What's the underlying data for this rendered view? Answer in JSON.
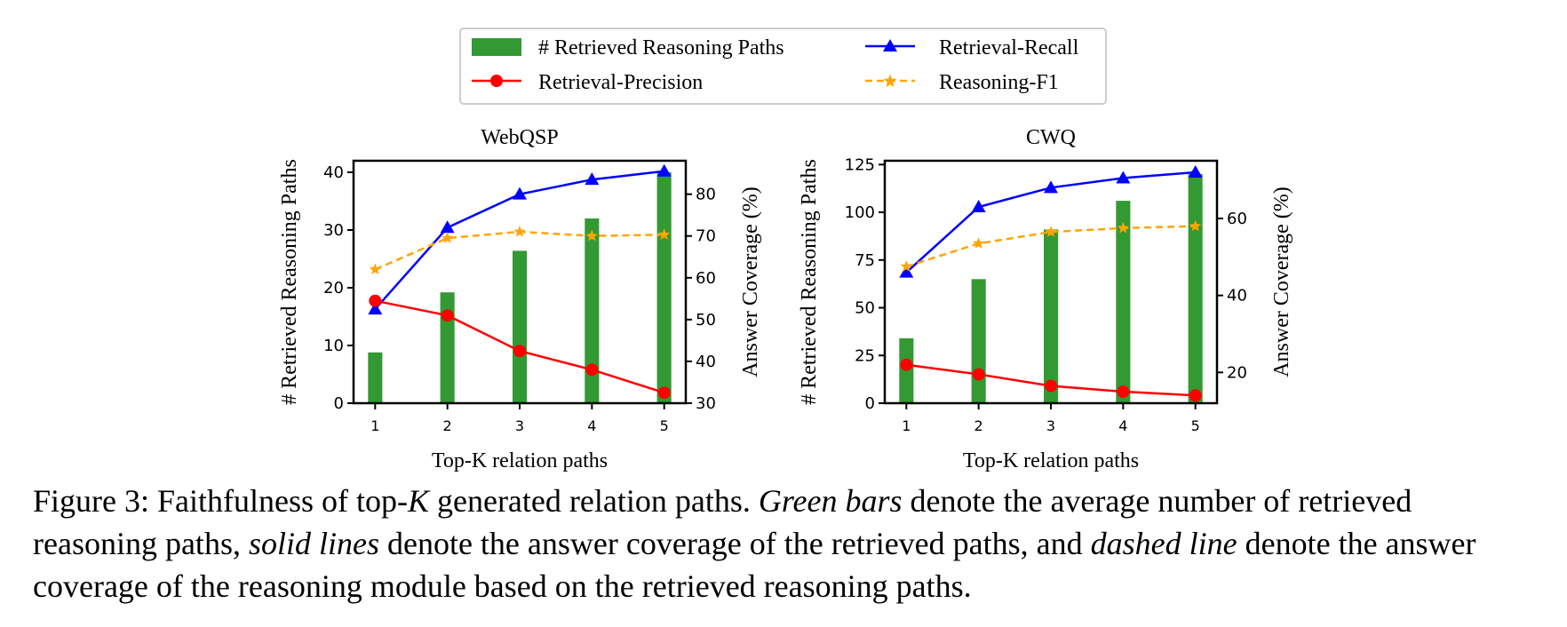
{
  "legend": {
    "items": [
      {
        "label": "# Retrieved Reasoning Paths",
        "kind": "bar",
        "color": "#339933"
      },
      {
        "label": "Retrieval-Recall",
        "kind": "line-triangle",
        "color": "#0000ff"
      },
      {
        "label": "Retrieval-Precision",
        "kind": "line-circle",
        "color": "#ff0000"
      },
      {
        "label": "Reasoning-F1",
        "kind": "dashed-star",
        "color": "#ffa500"
      }
    ]
  },
  "chart_data": [
    {
      "type": "bar",
      "title": "WebQSP",
      "xlabel": "Top-K relation paths",
      "ylabel": "# Retrieved Reasoning Paths",
      "y2label": "Answer Coverage (%)",
      "categories": [
        "1",
        "2",
        "3",
        "4",
        "5"
      ],
      "ylim": [
        0,
        42
      ],
      "y_ticks": [
        0,
        10,
        20,
        30,
        40
      ],
      "y2lim": [
        30,
        88
      ],
      "y2_ticks": [
        30,
        40,
        50,
        60,
        70,
        80
      ],
      "bars": {
        "name": "# Retrieved Reasoning Paths",
        "values": [
          8.8,
          19.2,
          26.4,
          32.0,
          40.0
        ]
      },
      "lines": [
        {
          "name": "Retrieval-Recall",
          "axis": "right",
          "values": [
            52.5,
            72.0,
            80.0,
            83.5,
            85.5
          ]
        },
        {
          "name": "Retrieval-Precision",
          "axis": "right",
          "values": [
            54.5,
            51.0,
            42.5,
            38.0,
            32.5
          ]
        },
        {
          "name": "Reasoning-F1",
          "axis": "right",
          "values": [
            62.0,
            69.5,
            71.0,
            70.0,
            70.3
          ]
        }
      ]
    },
    {
      "type": "bar",
      "title": "CWQ",
      "xlabel": "Top-K relation paths",
      "ylabel": "# Retrieved Reasoning Paths",
      "y2label": "Answer Coverage (%)",
      "categories": [
        "1",
        "2",
        "3",
        "4",
        "5"
      ],
      "ylim": [
        0,
        127
      ],
      "y_ticks": [
        0,
        25,
        50,
        75,
        100,
        125
      ],
      "y2lim": [
        12,
        75
      ],
      "y2_ticks": [
        20,
        40,
        60
      ],
      "bars": {
        "name": "# Retrieved Reasoning Paths",
        "values": [
          34,
          65,
          91,
          106,
          120
        ]
      },
      "lines": [
        {
          "name": "Retrieval-Recall",
          "axis": "right",
          "values": [
            46,
            63,
            68,
            70.5,
            72
          ]
        },
        {
          "name": "Retrieval-Precision",
          "axis": "right",
          "values": [
            22,
            19.5,
            16.5,
            15,
            14
          ]
        },
        {
          "name": "Reasoning-F1",
          "axis": "right",
          "values": [
            47.5,
            53.5,
            56.5,
            57.5,
            58
          ]
        }
      ]
    }
  ],
  "caption": {
    "prefix": "Figure 3: Faithfulness of top-",
    "k": "K",
    "part1": " generated relation paths. ",
    "em1": "Green bars",
    "part2": " denote the average number of retrieved reasoning paths, ",
    "em2": "solid lines",
    "part3": " denote the answer coverage of the retrieved paths, and ",
    "em3": "dashed line",
    "part4": " denote the answer coverage of the reasoning module based on the retrieved reasoning paths."
  }
}
